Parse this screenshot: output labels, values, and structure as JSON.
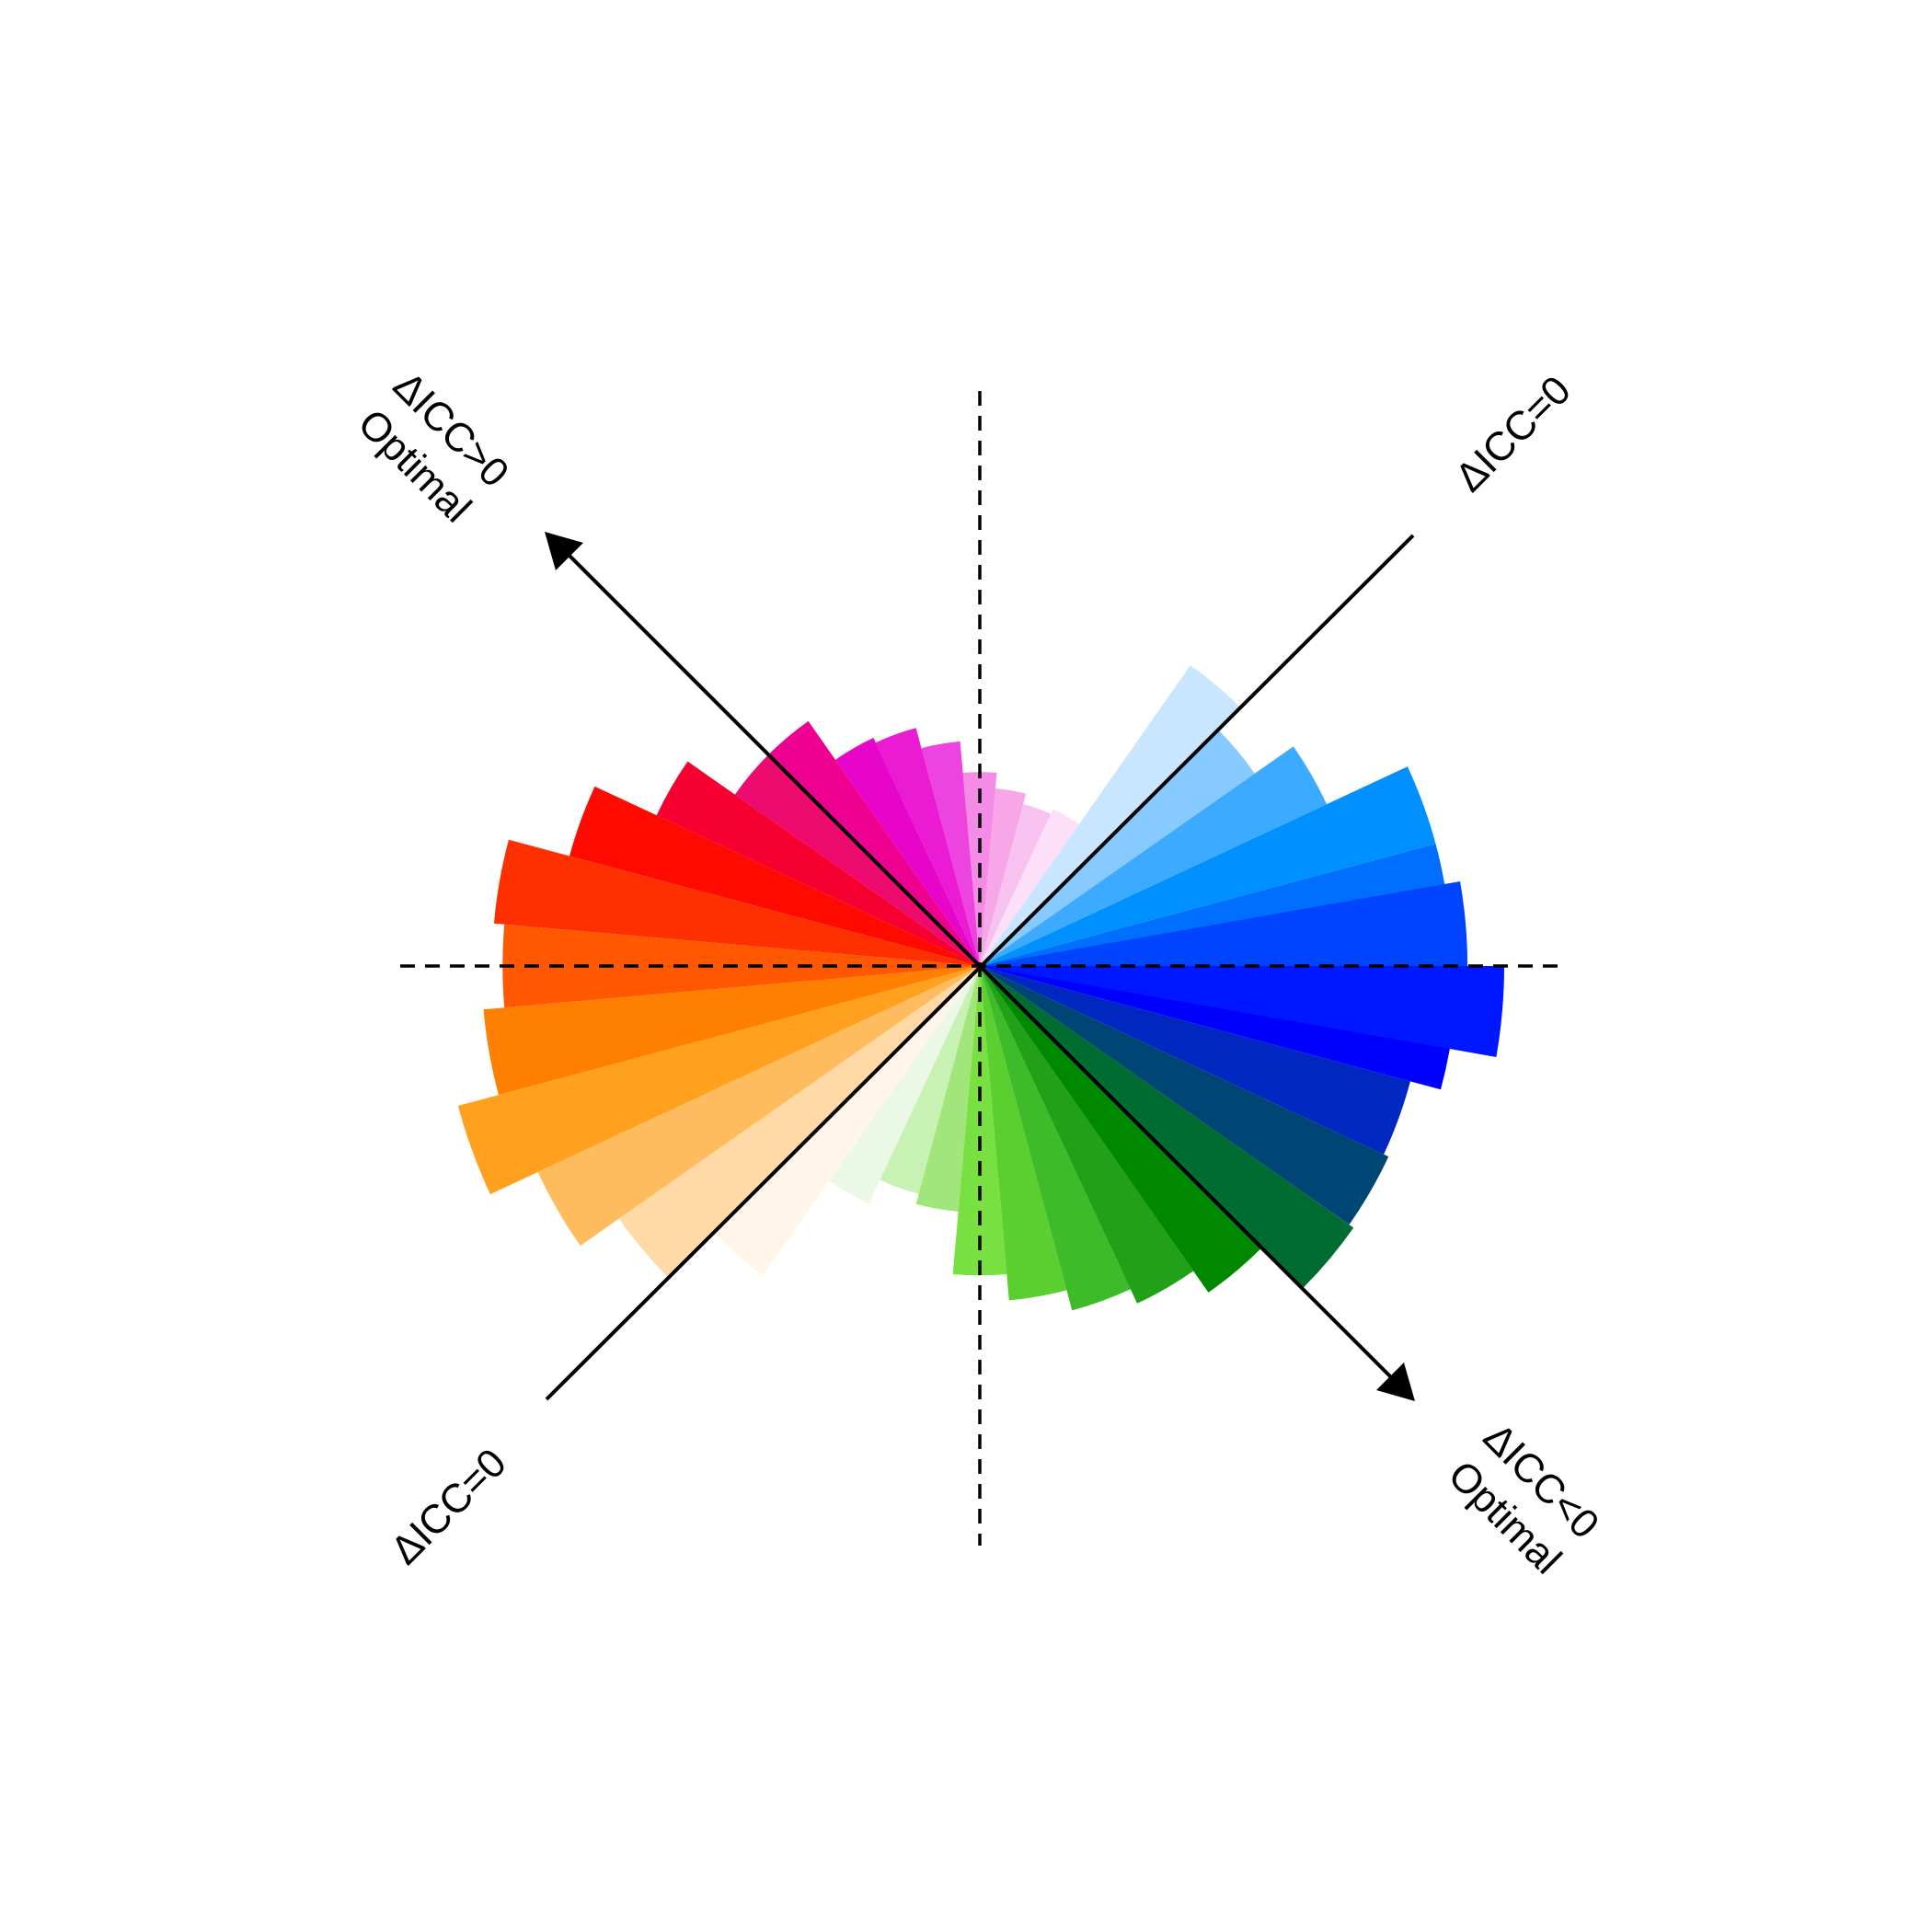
{
  "chart_data": {
    "type": "polar-bar",
    "title": "",
    "sector_width_deg": 10,
    "sectors": [
      {
        "angle_deg": 0,
        "value": 0.92,
        "color": "#0066FF"
      },
      {
        "angle_deg": 10,
        "value": 0.9,
        "color": "#006EFF"
      },
      {
        "angle_deg": 20,
        "value": 0.9,
        "color": "#0090FF"
      },
      {
        "angle_deg": 30,
        "value": 0.73,
        "color": "#3CAAFF"
      },
      {
        "angle_deg": 40,
        "value": 0.64,
        "color": "#87CAFF"
      },
      {
        "angle_deg": 50,
        "value": 0.7,
        "color": "#C8E6FF"
      },
      {
        "angle_deg": 60,
        "value": 0.33,
        "color": "#FDE0F8"
      },
      {
        "angle_deg": 70,
        "value": 0.32,
        "color": "#F8C2F0"
      },
      {
        "angle_deg": 80,
        "value": 0.34,
        "color": "#F7A6E8"
      },
      {
        "angle_deg": 90,
        "value": 0.37,
        "color": "#F48BE6"
      },
      {
        "angle_deg": 100,
        "value": 0.43,
        "color": "#EE44DF"
      },
      {
        "angle_deg": 110,
        "value": 0.47,
        "color": "#EB1AD3"
      },
      {
        "angle_deg": 120,
        "value": 0.48,
        "color": "#E605C8"
      },
      {
        "angle_deg": 130,
        "value": 0.57,
        "color": "#EE0090"
      },
      {
        "angle_deg": 140,
        "value": 0.57,
        "color": "#EC0A6E"
      },
      {
        "angle_deg": 150,
        "value": 0.68,
        "color": "#F50030"
      },
      {
        "angle_deg": 160,
        "value": 0.81,
        "color": "#FF0A00"
      },
      {
        "angle_deg": 170,
        "value": 0.93,
        "color": "#FF3000"
      },
      {
        "angle_deg": 180,
        "value": 0.91,
        "color": "#FF5800"
      },
      {
        "angle_deg": 190,
        "value": 0.95,
        "color": "#FF8000"
      },
      {
        "angle_deg": 200,
        "value": 1.03,
        "color": "#FFA01E"
      },
      {
        "angle_deg": 210,
        "value": 0.93,
        "color": "#FFBC5E"
      },
      {
        "angle_deg": 220,
        "value": 0.84,
        "color": "#FFD9A6"
      },
      {
        "angle_deg": 230,
        "value": 0.72,
        "color": "#FFF5E8"
      },
      {
        "angle_deg": 240,
        "value": 0.5,
        "color": "#EBF8E6"
      },
      {
        "angle_deg": 250,
        "value": 0.45,
        "color": "#C7F2B4"
      },
      {
        "angle_deg": 260,
        "value": 0.47,
        "color": "#A0E67A"
      },
      {
        "angle_deg": 270,
        "value": 0.59,
        "color": "#78E040"
      },
      {
        "angle_deg": 280,
        "value": 0.64,
        "color": "#5CCF30"
      },
      {
        "angle_deg": 290,
        "value": 0.68,
        "color": "#3DBB28"
      },
      {
        "angle_deg": 300,
        "value": 0.71,
        "color": "#22A018"
      },
      {
        "angle_deg": 310,
        "value": 0.76,
        "color": "#008800"
      },
      {
        "angle_deg": 320,
        "value": 0.87,
        "color": "#006C32"
      },
      {
        "angle_deg": 330,
        "value": 0.86,
        "color": "#004674"
      },
      {
        "angle_deg": 340,
        "value": 0.85,
        "color": "#0028C0"
      },
      {
        "angle_deg": 350,
        "value": 0.91,
        "color": "#0000FF"
      },
      {
        "angle_deg": 355,
        "value": 1.0,
        "color": "#0018FF"
      },
      {
        "angle_deg": 5,
        "value": 0.93,
        "color": "#0044FF"
      }
    ],
    "reference_lines": {
      "dashed_horizontal": true,
      "dashed_vertical": true,
      "diagonal_solid": true,
      "antidiagonal_arrow": true
    },
    "annotations": {
      "top_left_line1": "ΔICC>0",
      "top_left_line2": "Optimal",
      "top_right": "ΔICC=0",
      "bottom_left": "ΔICC=0",
      "bottom_right_line1": "ΔICC<0",
      "bottom_right_line2": "Optimal"
    }
  }
}
